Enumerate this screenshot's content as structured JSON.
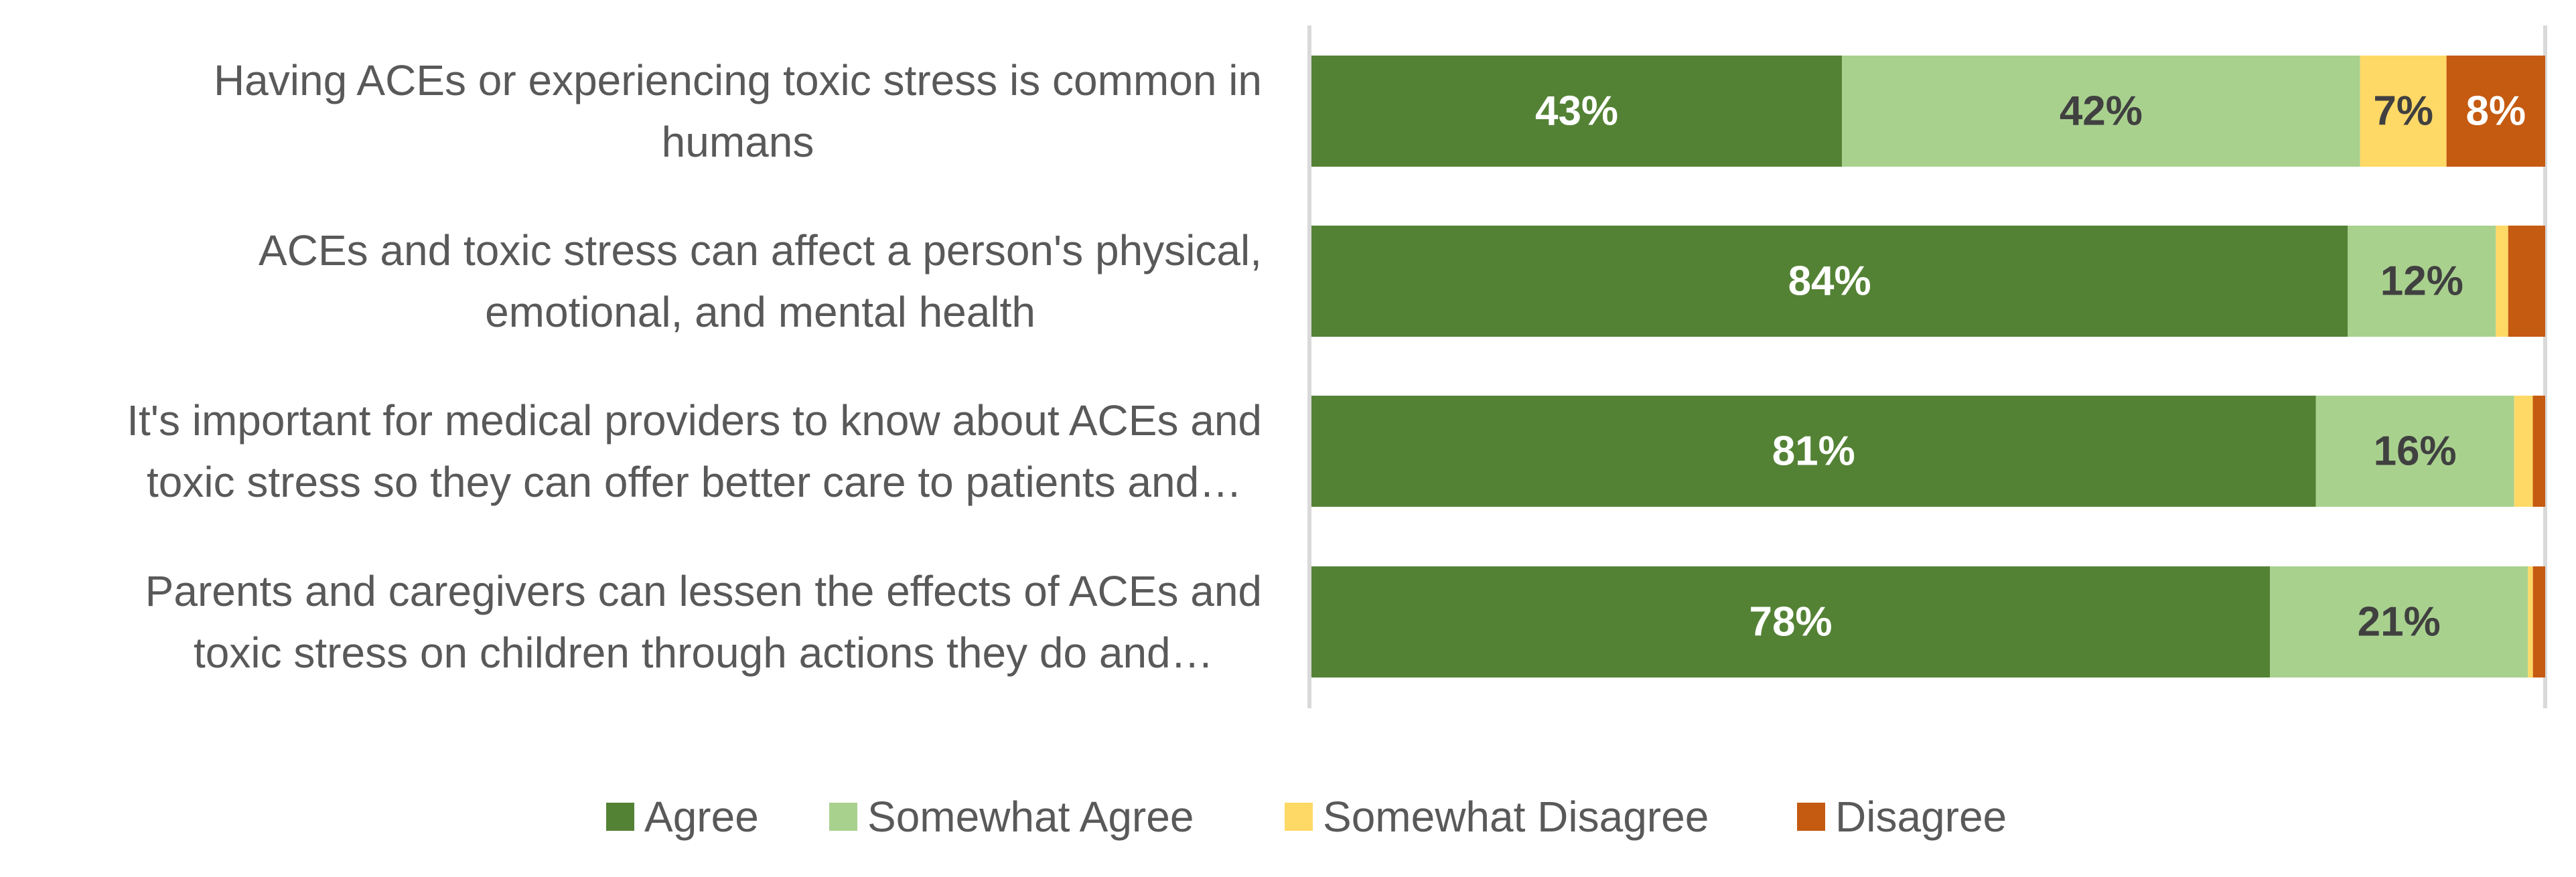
{
  "chart_data": {
    "type": "bar",
    "orientation": "horizontal",
    "stacked": "100%",
    "categories": [
      [
        "Having ACEs or experiencing toxic stress is common in",
        "humans"
      ],
      [
        "ACEs and toxic stress can affect a person's physical,",
        "emotional, and mental health"
      ],
      [
        "It's important for medical providers to know about ACEs and",
        "toxic stress so they can offer better care to patients and…"
      ],
      [
        "Parents and caregivers can lessen the effects of ACEs and",
        "toxic stress on children through actions they do and…"
      ]
    ],
    "series": [
      {
        "name": "Agree",
        "color": "#548235",
        "label_color": "#ffffff",
        "values": [
          43,
          84,
          81,
          78
        ],
        "labels": [
          "43%",
          "84%",
          "81%",
          "78%"
        ]
      },
      {
        "name": "Somewhat Agree",
        "color": "#a9d18e",
        "label_color": "#404040",
        "values": [
          42,
          12,
          16,
          21
        ],
        "labels": [
          "42%",
          "12%",
          "16%",
          "21%"
        ]
      },
      {
        "name": "Somewhat Disagree",
        "color": "#ffd966",
        "label_color": "#404040",
        "values": [
          7,
          1,
          1.5,
          0.4
        ],
        "labels": [
          "7%",
          "",
          "",
          ""
        ]
      },
      {
        "name": "Disagree",
        "color": "#c55a11",
        "label_color": "#ffffff",
        "values": [
          8,
          3,
          1,
          1
        ],
        "labels": [
          "8%",
          "",
          "",
          ""
        ]
      }
    ],
    "xlim": [
      0,
      100
    ],
    "legend_position": "bottom",
    "grid": false
  }
}
